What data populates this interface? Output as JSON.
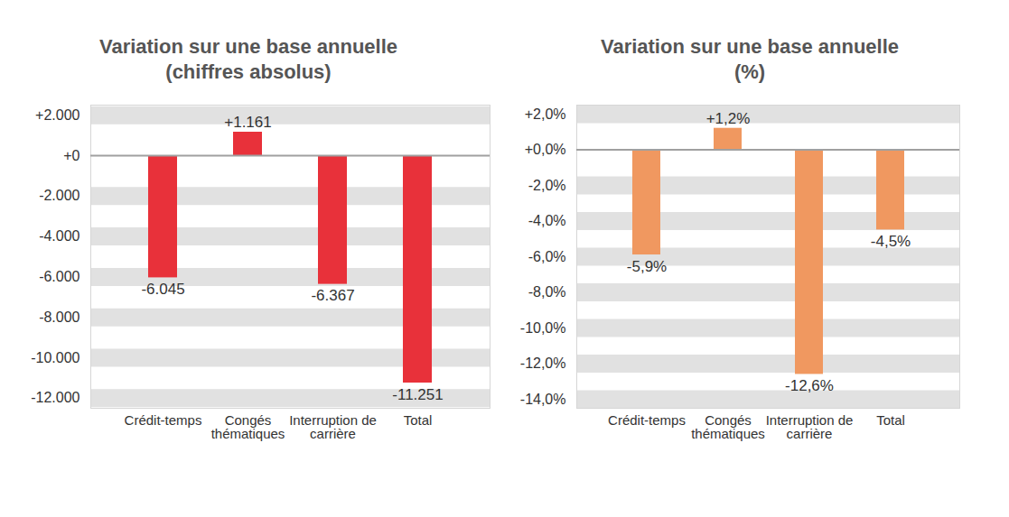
{
  "chart_data": [
    {
      "type": "bar",
      "title": "Variation sur une base annuelle",
      "subtitle": "(chiffres absolus)",
      "categories": [
        "Crédit-temps",
        "Congés thématiques",
        "Interruption de carrière",
        "Total"
      ],
      "values": [
        -6045,
        1161,
        -6367,
        -11251
      ],
      "value_labels": [
        "-6.045",
        "+1.161",
        "-6.367",
        "-11.251"
      ],
      "color": "#e8313a",
      "ylim": [
        -12500,
        2500
      ],
      "yticks": [
        {
          "value": 2000,
          "label": "+2.000"
        },
        {
          "value": 0,
          "label": "+0"
        },
        {
          "value": -2000,
          "label": "-2.000"
        },
        {
          "value": -4000,
          "label": "-4.000"
        },
        {
          "value": -6000,
          "label": "-6.000"
        },
        {
          "value": -8000,
          "label": "-8.000"
        },
        {
          "value": -10000,
          "label": "-10.000"
        },
        {
          "value": -12000,
          "label": "-12.000"
        }
      ],
      "grid": true,
      "data_labels": true
    },
    {
      "type": "bar",
      "title": "Variation sur une base annuelle",
      "subtitle": "(%)",
      "categories": [
        "Crédit-temps",
        "Congés thématiques",
        "Interruption de carrière",
        "Total"
      ],
      "values": [
        -5.9,
        1.2,
        -12.6,
        -4.5
      ],
      "value_labels": [
        "-5,9%",
        "+1,2%",
        "-12,6%",
        "-4,5%"
      ],
      "color": "#f09860",
      "ylim": [
        -14.5,
        2.5
      ],
      "yticks": [
        {
          "value": 2,
          "label": "+2,0%"
        },
        {
          "value": 0,
          "label": "+0,0%"
        },
        {
          "value": -2,
          "label": "-2,0%"
        },
        {
          "value": -4,
          "label": "-4,0%"
        },
        {
          "value": -6,
          "label": "-6,0%"
        },
        {
          "value": -8,
          "label": "-8,0%"
        },
        {
          "value": -10,
          "label": "-10,0%"
        },
        {
          "value": -12,
          "label": "-12,0%"
        },
        {
          "value": -14,
          "label": "-14,0%"
        }
      ],
      "grid": true,
      "data_labels": true
    }
  ]
}
